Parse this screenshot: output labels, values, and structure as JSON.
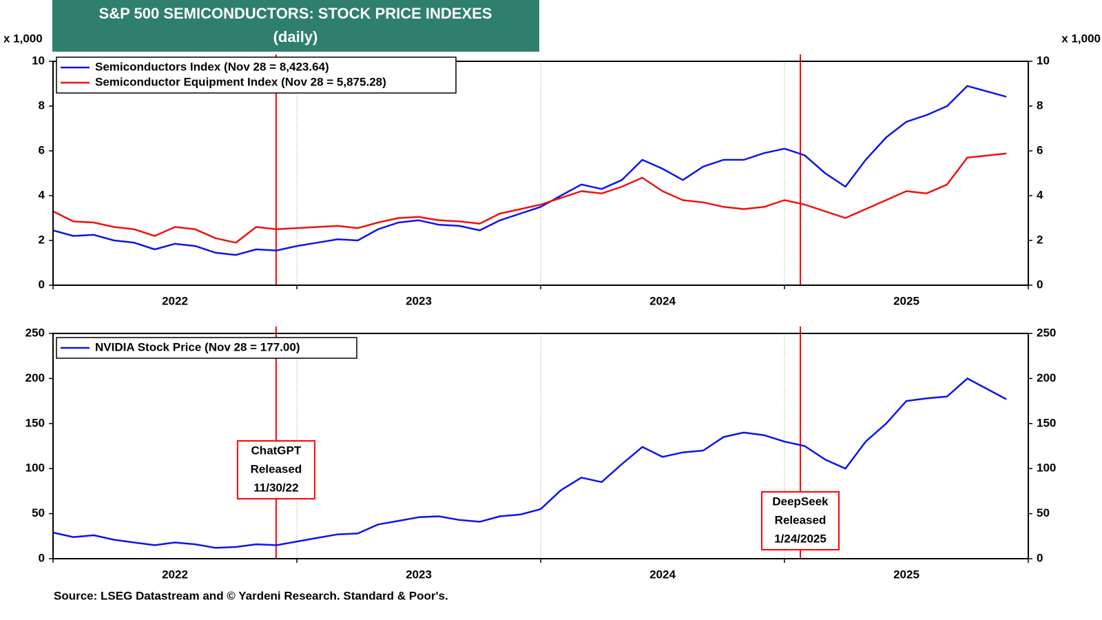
{
  "title": "S&P 500 SEMICONDUCTORS: STOCK PRICE INDEXES",
  "subtitle": "(daily)",
  "source": "Source: LSEG Datastream and © Yardeni Research. Standard & Poor's.",
  "events": [
    {
      "x": 2022.915,
      "color": "#ff0000",
      "text": [
        "ChatGPT",
        "Released",
        "11/30/22"
      ]
    },
    {
      "x": 2025.065,
      "color": "#ff0000",
      "text": [
        "DeepSeek",
        "Released",
        "1/24/2025"
      ]
    }
  ],
  "chart_data": [
    {
      "type": "line",
      "y_unit": "x 1,000",
      "xlim": [
        2022,
        2026
      ],
      "xticks": [
        2022,
        2023,
        2024,
        2025
      ],
      "ylim": [
        0,
        10
      ],
      "yticks": [
        0,
        2,
        4,
        6,
        8,
        10
      ],
      "grid": true,
      "legend": "upper left",
      "x": [
        2022,
        2022.083,
        2022.167,
        2022.25,
        2022.333,
        2022.417,
        2022.5,
        2022.583,
        2022.667,
        2022.75,
        2022.833,
        2022.917,
        2023,
        2023.083,
        2023.167,
        2023.25,
        2023.333,
        2023.417,
        2023.5,
        2023.583,
        2023.667,
        2023.75,
        2023.833,
        2023.917,
        2024,
        2024.083,
        2024.167,
        2024.25,
        2024.333,
        2024.417,
        2024.5,
        2024.583,
        2024.667,
        2024.75,
        2024.833,
        2024.917,
        2025,
        2025.083,
        2025.167,
        2025.25,
        2025.333,
        2025.417,
        2025.5,
        2025.583,
        2025.667,
        2025.75,
        2025.91
      ],
      "series": [
        {
          "name": "Semiconductors Index (Nov 28 = 8,423.64)",
          "color": "#0a14f0",
          "values": [
            2.45,
            2.2,
            2.25,
            2.0,
            1.9,
            1.6,
            1.85,
            1.75,
            1.45,
            1.35,
            1.6,
            1.55,
            1.75,
            1.9,
            2.05,
            2.0,
            2.5,
            2.8,
            2.9,
            2.7,
            2.65,
            2.45,
            2.9,
            3.2,
            3.5,
            4.0,
            4.5,
            4.3,
            4.7,
            5.6,
            5.2,
            4.7,
            5.3,
            5.6,
            5.6,
            5.9,
            6.1,
            5.8,
            5.0,
            4.4,
            5.6,
            6.6,
            7.3,
            7.6,
            8.0,
            8.9,
            8.42
          ]
        },
        {
          "name": "Semiconductor Equipment Index (Nov 28 = 5,875.28)",
          "color": "#f01010",
          "values": [
            3.3,
            2.85,
            2.8,
            2.6,
            2.5,
            2.2,
            2.6,
            2.5,
            2.1,
            1.9,
            2.6,
            2.5,
            2.55,
            2.6,
            2.65,
            2.55,
            2.8,
            3.0,
            3.05,
            2.9,
            2.85,
            2.75,
            3.2,
            3.4,
            3.6,
            3.9,
            4.2,
            4.1,
            4.4,
            4.8,
            4.2,
            3.8,
            3.7,
            3.5,
            3.4,
            3.5,
            3.8,
            3.6,
            3.3,
            3.0,
            3.4,
            3.8,
            4.2,
            4.1,
            4.5,
            5.7,
            5.88
          ]
        }
      ]
    },
    {
      "type": "line",
      "xlim": [
        2022,
        2026
      ],
      "xticks": [
        2022,
        2023,
        2024,
        2025
      ],
      "ylim": [
        0,
        250
      ],
      "yticks": [
        0,
        50,
        100,
        150,
        200,
        250
      ],
      "grid": true,
      "legend": "upper left",
      "x": [
        2022,
        2022.083,
        2022.167,
        2022.25,
        2022.333,
        2022.417,
        2022.5,
        2022.583,
        2022.667,
        2022.75,
        2022.833,
        2022.917,
        2023,
        2023.083,
        2023.167,
        2023.25,
        2023.333,
        2023.417,
        2023.5,
        2023.583,
        2023.667,
        2023.75,
        2023.833,
        2023.917,
        2024,
        2024.083,
        2024.167,
        2024.25,
        2024.333,
        2024.417,
        2024.5,
        2024.583,
        2024.667,
        2024.75,
        2024.833,
        2024.917,
        2025,
        2025.083,
        2025.167,
        2025.25,
        2025.333,
        2025.417,
        2025.5,
        2025.583,
        2025.667,
        2025.75,
        2025.91
      ],
      "series": [
        {
          "name": "NVIDIA Stock Price (Nov 28 = 177.00)",
          "color": "#0a14f0",
          "values": [
            29,
            24,
            26,
            21,
            18,
            15,
            18,
            16,
            12,
            13,
            16,
            15,
            19,
            23,
            27,
            28,
            38,
            42,
            46,
            47,
            43,
            41,
            47,
            49,
            55,
            76,
            90,
            85,
            105,
            124,
            113,
            118,
            120,
            135,
            140,
            137,
            130,
            125,
            110,
            100,
            130,
            150,
            175,
            178,
            180,
            200,
            177
          ]
        }
      ]
    }
  ]
}
